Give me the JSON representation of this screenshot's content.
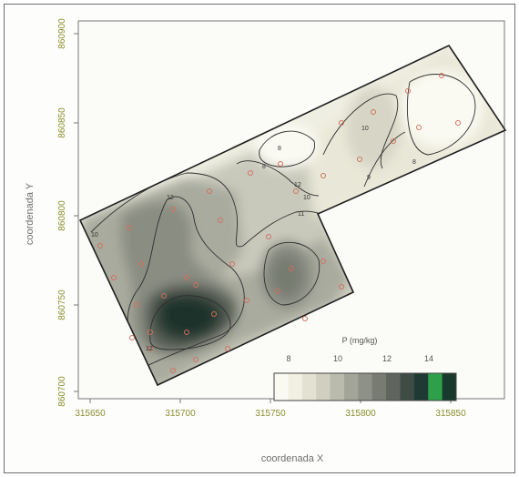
{
  "chart_data": {
    "type": "heatmap",
    "title": "",
    "xlabel": "coordenada X",
    "ylabel": "coordenada Y",
    "x_ticks": [
      "315650",
      "315700",
      "315750",
      "315800",
      "315850"
    ],
    "y_ticks": [
      "860700",
      "860750",
      "860800",
      "860850",
      "860900"
    ],
    "xlim": [
      315640,
      315880
    ],
    "ylim": [
      860695,
      860910
    ],
    "legend": {
      "title": "P (mg/kg)",
      "tick_labels": [
        "8",
        "10",
        "12",
        "14"
      ],
      "color_stops": [
        "#fbfaf2",
        "#f2f0e2",
        "#e3e2d2",
        "#d0cfc0",
        "#bbbbad",
        "#a4a59a",
        "#8e9187",
        "#777b72",
        "#5f655e",
        "#3f4c46",
        "#1f3a33",
        "#2ea04a",
        "#173a2c"
      ]
    },
    "contour_labels": [
      "10",
      "10",
      "12",
      "12",
      "11",
      "10",
      "8",
      "12",
      "12",
      "12",
      "9",
      "8",
      "8",
      "12"
    ]
  }
}
